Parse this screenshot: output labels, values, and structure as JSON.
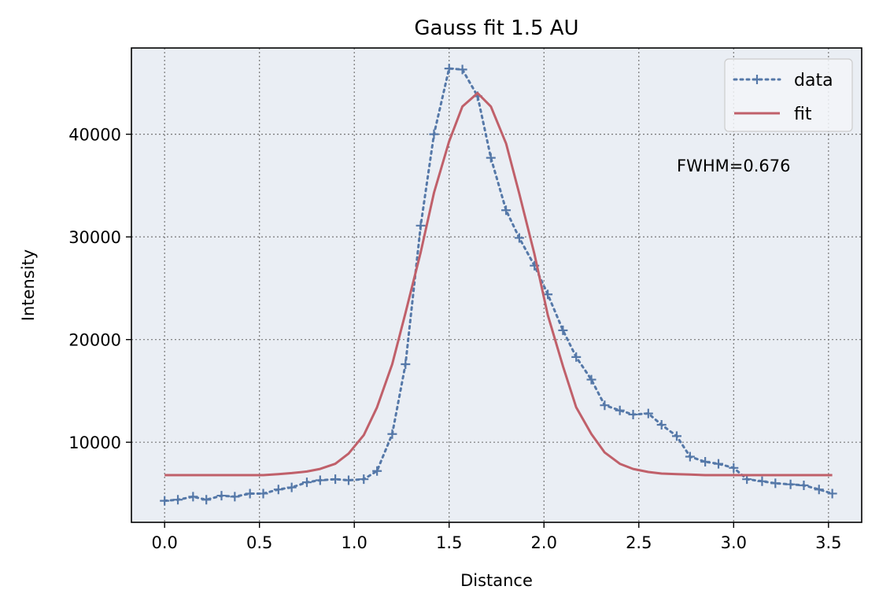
{
  "chart_data": {
    "type": "line",
    "title": "Gauss fit 1.5 AU",
    "xlabel": "Distance",
    "ylabel": "Intensity",
    "xlim": [
      -0.175,
      3.675
    ],
    "ylim": [
      2200,
      48400
    ],
    "xticks": [
      0.0,
      0.5,
      1.0,
      1.5,
      2.0,
      2.5,
      3.0,
      3.5
    ],
    "xtick_labels": [
      "0.0",
      "0.5",
      "1.0",
      "1.5",
      "2.0",
      "2.5",
      "3.0",
      "3.5"
    ],
    "yticks": [
      10000,
      20000,
      30000,
      40000
    ],
    "ytick_labels": [
      "10000",
      "20000",
      "30000",
      "40000"
    ],
    "grid": true,
    "legend_position": "top-right",
    "annotation": "FWHM=0.676",
    "background": "#eaeef4",
    "series": [
      {
        "name": "data",
        "style": "dotted-with-plus-markers",
        "color": "#5578a8",
        "x": [
          0.0,
          0.07,
          0.15,
          0.22,
          0.3,
          0.37,
          0.45,
          0.52,
          0.6,
          0.67,
          0.75,
          0.82,
          0.9,
          0.97,
          1.05,
          1.12,
          1.2,
          1.27,
          1.35,
          1.42,
          1.5,
          1.57,
          1.65,
          1.72,
          1.8,
          1.87,
          1.95,
          2.02,
          2.1,
          2.17,
          2.25,
          2.32,
          2.4,
          2.47,
          2.55,
          2.62,
          2.7,
          2.77,
          2.85,
          2.92,
          3.0,
          3.07,
          3.15,
          3.22,
          3.3,
          3.37,
          3.45,
          3.52
        ],
        "y": [
          4300,
          4400,
          4700,
          4400,
          4800,
          4700,
          5000,
          5000,
          5400,
          5600,
          6100,
          6300,
          6400,
          6300,
          6400,
          7200,
          10800,
          17600,
          31100,
          40000,
          46400,
          46300,
          43700,
          37700,
          32600,
          29900,
          27200,
          24400,
          20900,
          18300,
          16100,
          13600,
          13100,
          12700,
          12800,
          11700,
          10600,
          8600,
          8100,
          7900,
          7500,
          6400,
          6200,
          6000,
          5900,
          5800,
          5400,
          5000
        ]
      },
      {
        "name": "fit",
        "style": "solid",
        "color": "#c0606a",
        "x": [
          0.0,
          0.07,
          0.15,
          0.22,
          0.3,
          0.37,
          0.45,
          0.52,
          0.6,
          0.67,
          0.75,
          0.82,
          0.9,
          0.97,
          1.05,
          1.12,
          1.2,
          1.27,
          1.35,
          1.42,
          1.5,
          1.57,
          1.65,
          1.72,
          1.8,
          1.87,
          1.95,
          2.02,
          2.1,
          2.17,
          2.25,
          2.32,
          2.4,
          2.47,
          2.55,
          2.62,
          2.7,
          2.77,
          2.85,
          2.92,
          3.0,
          3.07,
          3.15,
          3.22,
          3.3,
          3.37,
          3.45,
          3.52
        ],
        "y": [
          6800,
          6800,
          6800,
          6800,
          6800,
          6800,
          6800,
          6800,
          6900,
          7000,
          7150,
          7400,
          7900,
          8900,
          10700,
          13400,
          17600,
          22600,
          28500,
          34300,
          39300,
          42700,
          44000,
          42700,
          39100,
          34200,
          28300,
          22400,
          17400,
          13400,
          10800,
          9000,
          7900,
          7400,
          7100,
          6950,
          6900,
          6850,
          6800,
          6800,
          6800,
          6800,
          6800,
          6800,
          6800,
          6800,
          6800,
          6800
        ]
      }
    ]
  }
}
